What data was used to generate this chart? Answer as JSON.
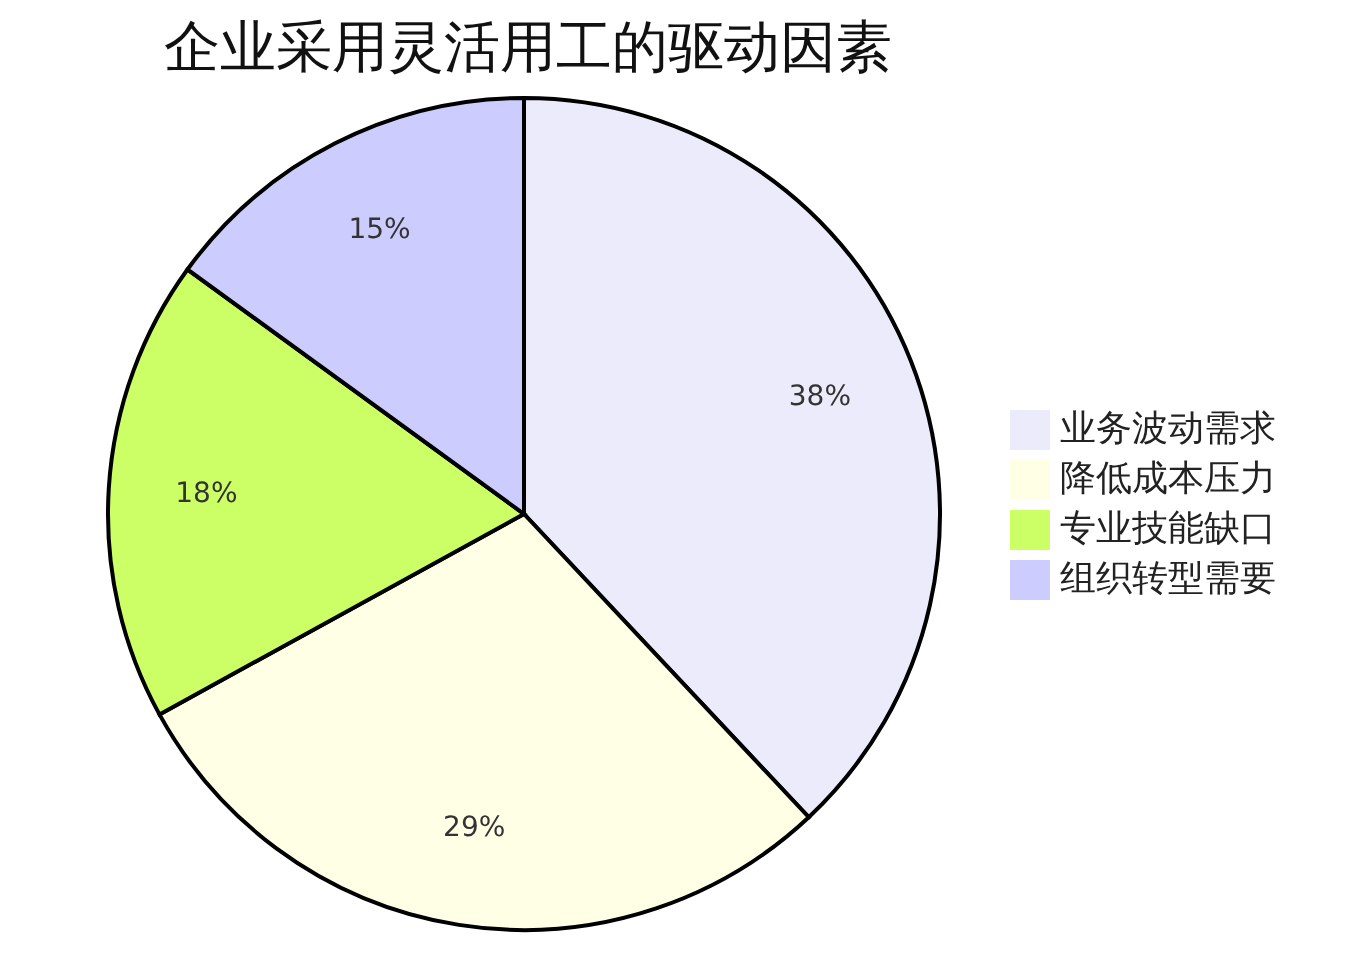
{
  "chart_data": {
    "type": "pie",
    "title": "企业采用灵活用工的驱动因素",
    "categories": [
      "业务波动需求",
      "降低成本压力",
      "专业技能缺口",
      "组织转型需要"
    ],
    "values": [
      38,
      29,
      18,
      15
    ],
    "value_labels": [
      "38%",
      "29%",
      "18%",
      "15%"
    ],
    "colors": [
      "#ebebfb",
      "#ffffe6",
      "#ccff66",
      "#ccccff"
    ],
    "legend": "right"
  }
}
